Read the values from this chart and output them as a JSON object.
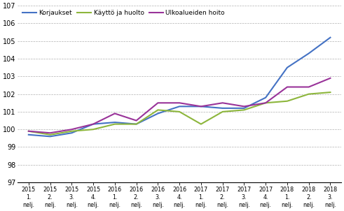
{
  "x_labels_year": [
    "2015",
    "2015",
    "2015",
    "2015",
    "2016",
    "2016",
    "2016",
    "2016",
    "2017",
    "2017",
    "2017",
    "2017",
    "2018",
    "2018",
    "2018"
  ],
  "x_labels_q": [
    "1.",
    "2.",
    "3.",
    "4.",
    "1.",
    "2.",
    "3.",
    "4.",
    "1.",
    "2.",
    "3.",
    "4.",
    "1.",
    "2.",
    "3."
  ],
  "korjaukset": [
    99.7,
    99.6,
    99.8,
    100.3,
    100.4,
    100.3,
    100.9,
    101.3,
    101.3,
    101.2,
    101.2,
    101.8,
    103.5,
    104.3,
    105.2
  ],
  "kaytto_huolto": [
    99.9,
    99.7,
    99.9,
    100.0,
    100.3,
    100.3,
    101.1,
    101.0,
    100.3,
    101.0,
    101.1,
    101.5,
    101.6,
    102.0,
    102.1
  ],
  "ulkoalueiden_hoito": [
    99.9,
    99.8,
    100.0,
    100.3,
    100.9,
    100.5,
    101.5,
    101.5,
    101.3,
    101.5,
    101.3,
    101.5,
    102.4,
    102.4,
    102.9
  ],
  "korjaukset_color": "#4472c4",
  "kaytto_huolto_color": "#8db63c",
  "ulkoalueiden_hoito_color": "#993399",
  "ylim": [
    97,
    107
  ],
  "yticks": [
    97,
    98,
    99,
    100,
    101,
    102,
    103,
    104,
    105,
    106,
    107
  ],
  "legend_labels": [
    "Korjaukset",
    "Käyttö ja huolto",
    "Ulkoalueiden hoito"
  ],
  "background_color": "#ffffff",
  "grid_color": "#b0b0b0",
  "line_width": 1.5
}
